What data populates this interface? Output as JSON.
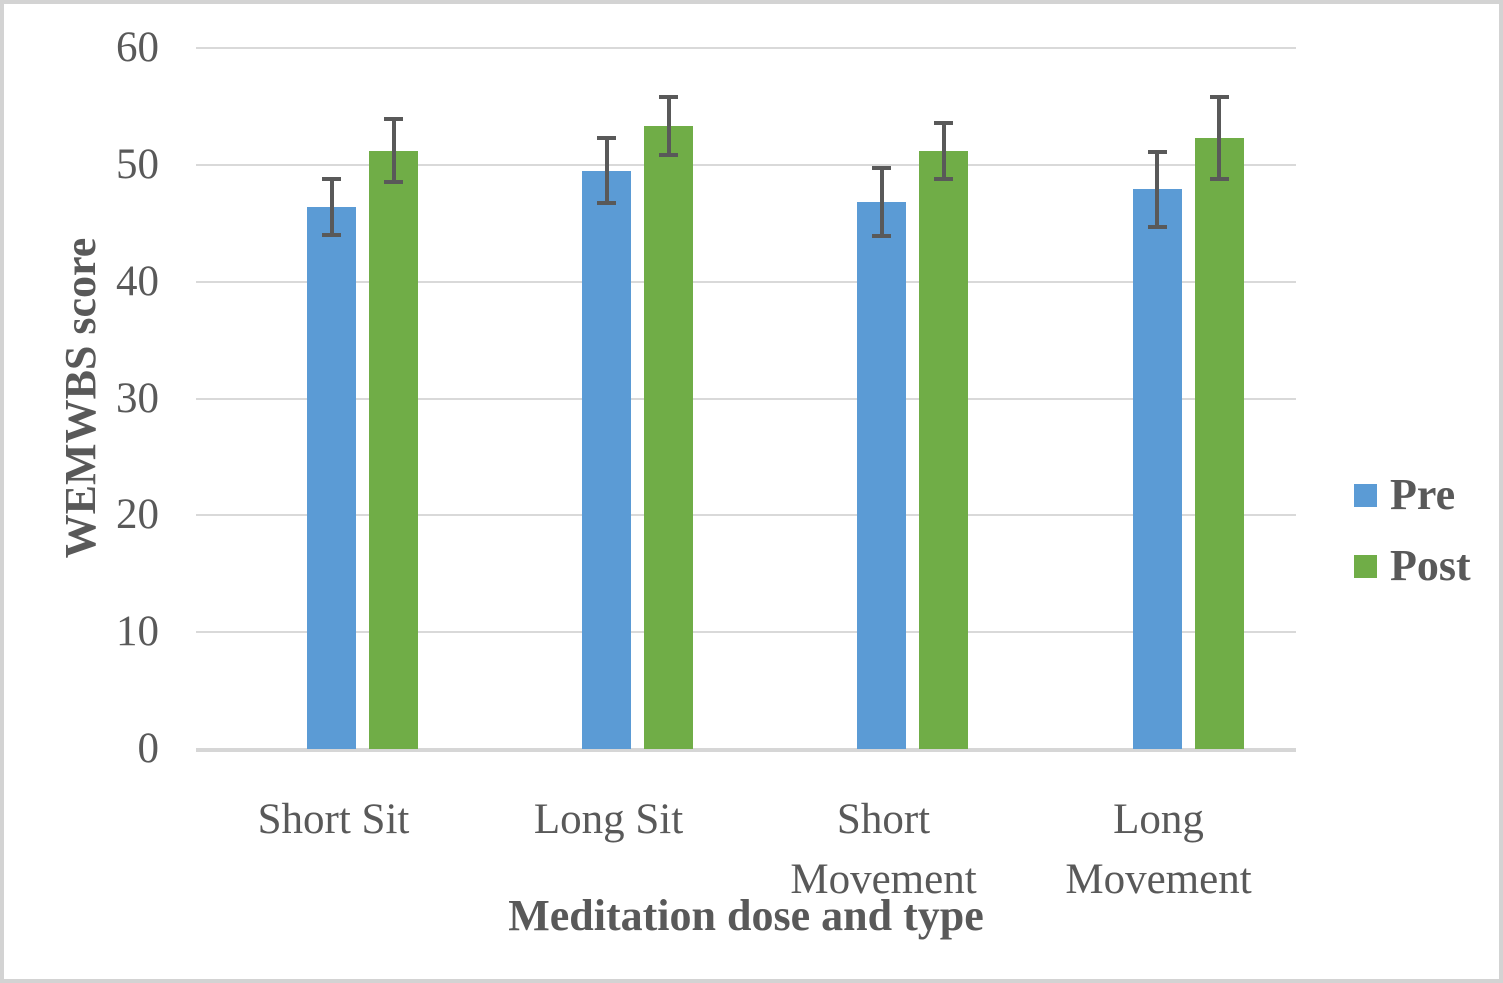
{
  "chart_data": {
    "type": "bar",
    "title": "",
    "xlabel": "Meditation dose and type",
    "ylabel": "WEMWBS score",
    "categories": [
      "Short Sit",
      "Long Sit",
      "Short Movement",
      "Long Movement"
    ],
    "series": [
      {
        "name": "Pre",
        "color": "#5B9BD5",
        "values": [
          46.4,
          49.5,
          46.8,
          47.9
        ],
        "error_bars": [
          2.4,
          2.8,
          2.9,
          3.2
        ]
      },
      {
        "name": "Post",
        "color": "#70AD47",
        "values": [
          51.2,
          53.3,
          51.2,
          52.3
        ],
        "error_bars": [
          2.7,
          2.5,
          2.4,
          3.5
        ]
      }
    ],
    "ylim": [
      0,
      60
    ],
    "ytick_interval": 10,
    "ytick_labels": [
      "0",
      "10",
      "20",
      "30",
      "40",
      "50",
      "60"
    ],
    "grid": "horizontal",
    "legend_position": "right",
    "colors": {
      "error_bar": "#595959",
      "gridline": "#d9d9d9",
      "axis_line": "#d6d6d6",
      "text": "#595959"
    }
  }
}
